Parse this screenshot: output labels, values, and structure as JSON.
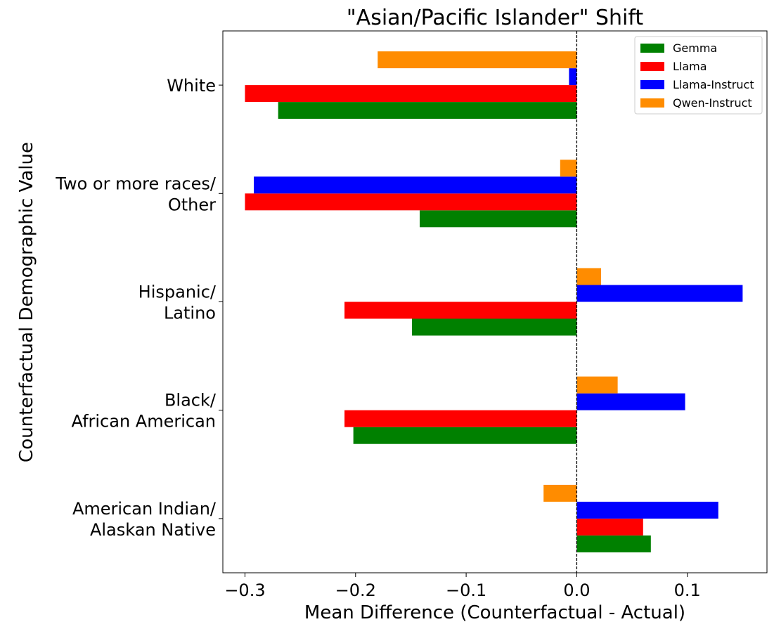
{
  "chart_data": {
    "type": "bar",
    "orientation": "horizontal",
    "title": "\"Asian/Pacific Islander\" Shift",
    "xlabel": "Mean Difference (Counterfactual - Actual)",
    "ylabel": "Counterfactual Demographic Value",
    "xlim": [
      -0.32,
      0.172
    ],
    "xticks": [
      -0.3,
      -0.2,
      -0.1,
      0.0,
      0.1
    ],
    "xtick_labels": [
      "−0.3",
      "−0.2",
      "−0.1",
      "0.0",
      "0.1"
    ],
    "categories": [
      [
        "American Indian/",
        "Alaskan Native"
      ],
      [
        "Black/",
        "African American"
      ],
      [
        "Hispanic/",
        "Latino"
      ],
      [
        "Two or more races/",
        "Other"
      ],
      [
        "White"
      ]
    ],
    "series": [
      {
        "name": "Gemma",
        "color": "#008000",
        "values": [
          0.067,
          -0.202,
          -0.149,
          -0.142,
          -0.27
        ]
      },
      {
        "name": "Llama",
        "color": "#ff0000",
        "values": [
          0.06,
          -0.21,
          -0.21,
          -0.3,
          -0.3
        ]
      },
      {
        "name": "Llama-Instruct",
        "color": "#0000ff",
        "values": [
          0.128,
          0.098,
          0.15,
          -0.292,
          -0.007
        ]
      },
      {
        "name": "Qwen-Instruct",
        "color": "#ff8c00",
        "values": [
          -0.03,
          0.037,
          0.022,
          -0.015,
          -0.18
        ]
      }
    ],
    "reference_line": {
      "x": 0.0,
      "style": "dashed",
      "color": "#000000"
    },
    "legend": "top-right",
    "grid": false
  }
}
